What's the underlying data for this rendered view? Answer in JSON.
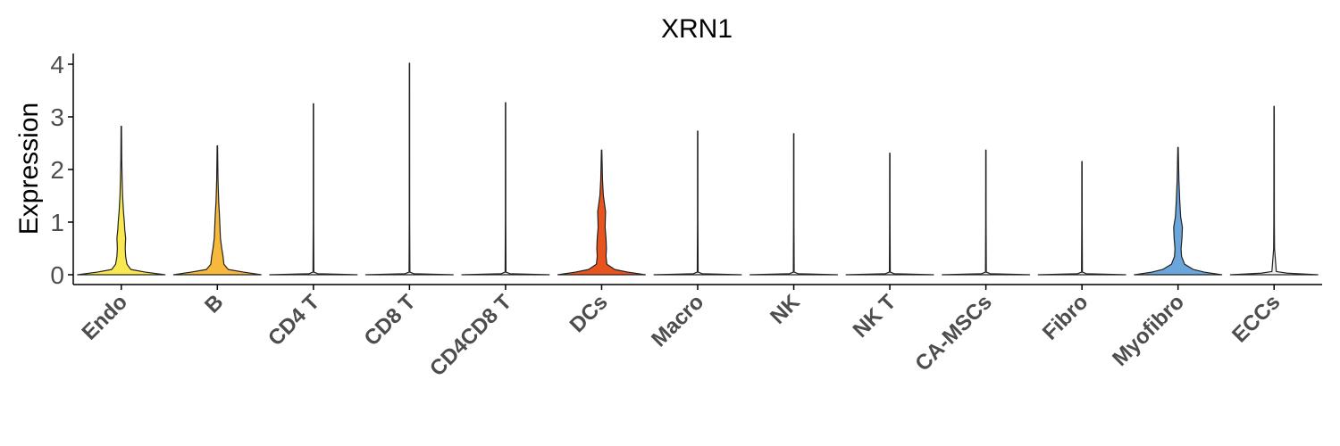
{
  "chart_data": {
    "type": "violin",
    "title": "XRN1",
    "xlabel": "",
    "ylabel": "Expression",
    "ylim": [
      -0.2,
      4.25
    ],
    "yticks": [
      "0",
      "1",
      "2",
      "3",
      "4"
    ],
    "grid": false,
    "legend": "none",
    "categories": [
      "Endo",
      "B",
      "CD4 T",
      "CD8 T",
      "CD4CD8 T",
      "DCs",
      "Macro",
      "NK",
      "NK T",
      "CA-MSCs",
      "Fibro",
      "Myofibro",
      "ECCs"
    ],
    "series": [
      {
        "category": "Endo",
        "color": "#f7e94f",
        "max": 2.82,
        "density": [
          [
            0,
            1.0
          ],
          [
            0.05,
            0.55
          ],
          [
            0.1,
            0.22
          ],
          [
            0.2,
            0.13
          ],
          [
            0.35,
            0.1
          ],
          [
            0.5,
            0.09
          ],
          [
            0.7,
            0.1
          ],
          [
            0.85,
            0.08
          ],
          [
            1.0,
            0.07
          ],
          [
            1.2,
            0.05
          ],
          [
            1.5,
            0.03
          ],
          [
            1.8,
            0.02
          ],
          [
            2.2,
            0.01
          ],
          [
            2.82,
            0.005
          ]
        ]
      },
      {
        "category": "B",
        "color": "#f6b93b",
        "max": 2.45,
        "density": [
          [
            0,
            1.0
          ],
          [
            0.05,
            0.6
          ],
          [
            0.1,
            0.25
          ],
          [
            0.2,
            0.15
          ],
          [
            0.35,
            0.13
          ],
          [
            0.5,
            0.1
          ],
          [
            0.7,
            0.07
          ],
          [
            0.9,
            0.06
          ],
          [
            1.1,
            0.05
          ],
          [
            1.4,
            0.03
          ],
          [
            1.8,
            0.015
          ],
          [
            2.45,
            0.005
          ]
        ]
      },
      {
        "category": "CD4 T",
        "color": "#eeeeee",
        "max": 3.25,
        "density": [
          [
            0,
            1.0
          ],
          [
            0.02,
            0.1
          ],
          [
            0.05,
            0.01
          ],
          [
            1.0,
            0.005
          ],
          [
            3.25,
            0.004
          ]
        ]
      },
      {
        "category": "CD8 T",
        "color": "#eeeeee",
        "max": 4.02,
        "density": [
          [
            0,
            1.0
          ],
          [
            0.02,
            0.1
          ],
          [
            0.05,
            0.01
          ],
          [
            1.0,
            0.005
          ],
          [
            4.02,
            0.004
          ]
        ]
      },
      {
        "category": "CD4CD8 T",
        "color": "#eeeeee",
        "max": 3.27,
        "density": [
          [
            0,
            1.0
          ],
          [
            0.02,
            0.1
          ],
          [
            0.05,
            0.01
          ],
          [
            1.0,
            0.005
          ],
          [
            3.27,
            0.004
          ]
        ]
      },
      {
        "category": "DCs",
        "color": "#e8541e",
        "max": 2.37,
        "density": [
          [
            0,
            1.0
          ],
          [
            0.05,
            0.6
          ],
          [
            0.1,
            0.3
          ],
          [
            0.2,
            0.12
          ],
          [
            0.35,
            0.1
          ],
          [
            0.5,
            0.11
          ],
          [
            0.7,
            0.1
          ],
          [
            0.9,
            0.08
          ],
          [
            1.2,
            0.09
          ],
          [
            1.5,
            0.04
          ],
          [
            1.8,
            0.02
          ],
          [
            2.37,
            0.005
          ]
        ]
      },
      {
        "category": "Macro",
        "color": "#eeeeee",
        "max": 2.73,
        "density": [
          [
            0,
            1.0
          ],
          [
            0.02,
            0.1
          ],
          [
            0.05,
            0.01
          ],
          [
            1.0,
            0.005
          ],
          [
            2.73,
            0.004
          ]
        ]
      },
      {
        "category": "NK",
        "color": "#eeeeee",
        "max": 2.68,
        "density": [
          [
            0,
            1.0
          ],
          [
            0.02,
            0.1
          ],
          [
            0.05,
            0.01
          ],
          [
            1.0,
            0.005
          ],
          [
            2.68,
            0.004
          ]
        ]
      },
      {
        "category": "NK T",
        "color": "#eeeeee",
        "max": 2.31,
        "density": [
          [
            0,
            1.0
          ],
          [
            0.02,
            0.1
          ],
          [
            0.05,
            0.01
          ],
          [
            1.0,
            0.005
          ],
          [
            2.31,
            0.004
          ]
        ]
      },
      {
        "category": "CA-MSCs",
        "color": "#eeeeee",
        "max": 2.37,
        "density": [
          [
            0,
            1.0
          ],
          [
            0.02,
            0.1
          ],
          [
            0.05,
            0.01
          ],
          [
            1.0,
            0.005
          ],
          [
            2.37,
            0.004
          ]
        ]
      },
      {
        "category": "Fibro",
        "color": "#eeeeee",
        "max": 2.15,
        "density": [
          [
            0,
            1.0
          ],
          [
            0.02,
            0.1
          ],
          [
            0.05,
            0.01
          ],
          [
            1.0,
            0.005
          ],
          [
            2.15,
            0.004
          ]
        ]
      },
      {
        "category": "Myofibro",
        "color": "#6aa5dc",
        "max": 2.42,
        "density": [
          [
            0,
            1.0
          ],
          [
            0.05,
            0.6
          ],
          [
            0.1,
            0.35
          ],
          [
            0.2,
            0.15
          ],
          [
            0.35,
            0.08
          ],
          [
            0.5,
            0.07
          ],
          [
            0.7,
            0.09
          ],
          [
            0.9,
            0.1
          ],
          [
            1.1,
            0.06
          ],
          [
            1.4,
            0.04
          ],
          [
            1.8,
            0.02
          ],
          [
            2.42,
            0.005
          ]
        ]
      },
      {
        "category": "ECCs",
        "color": "#eeeeee",
        "max": 3.2,
        "density": [
          [
            0,
            1.0
          ],
          [
            0.03,
            0.3
          ],
          [
            0.06,
            0.05
          ],
          [
            0.5,
            0.01
          ],
          [
            1.0,
            0.006
          ],
          [
            3.2,
            0.004
          ]
        ]
      }
    ]
  }
}
